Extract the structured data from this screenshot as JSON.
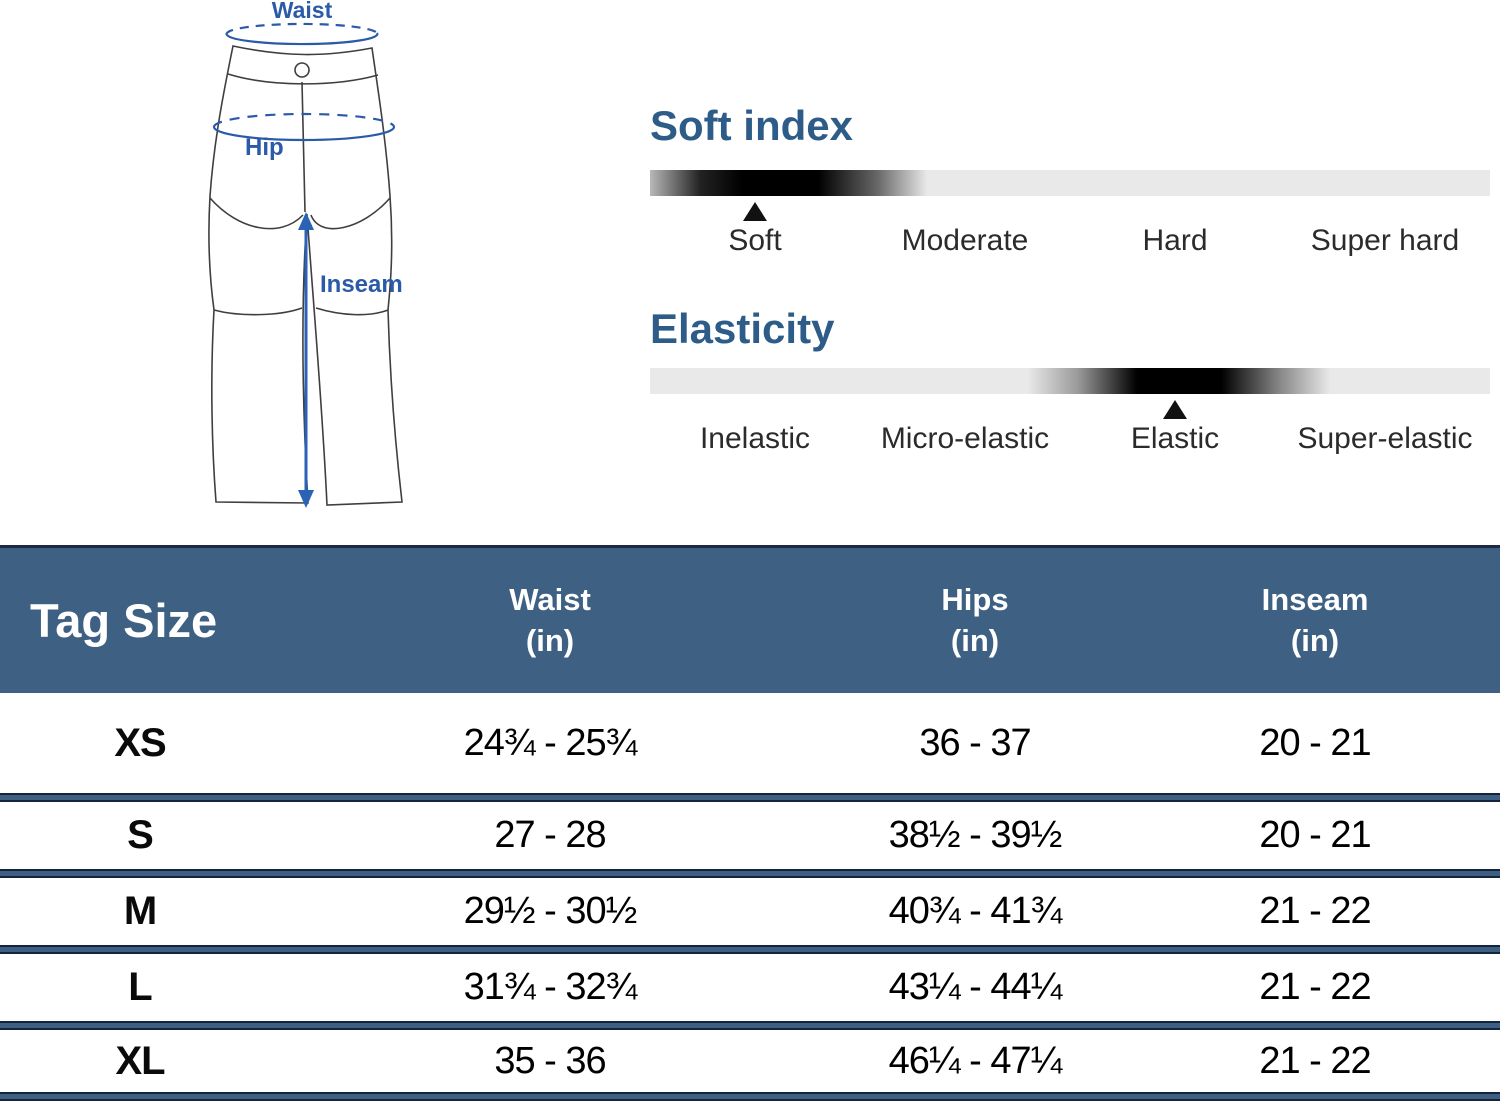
{
  "colors": {
    "accent_heading_blue": "#2E5C88",
    "diagram_label_blue": "#2A5AA8",
    "table_header_bg": "#3D6083",
    "separator_navy": "#15243C",
    "scale_track_gray": "#E9E9E9",
    "marker_black": "#111111"
  },
  "diagram": {
    "waist_label": "Waist",
    "hip_label": "Hip",
    "inseam_label": "Inseam"
  },
  "soft_index": {
    "title": "Soft index",
    "labels": [
      "Soft",
      "Moderate",
      "Hard",
      "Super hard"
    ],
    "selected": "Soft",
    "marker_pct": 12.5
  },
  "elasticity": {
    "title": "Elasticity",
    "labels": [
      "Inelastic",
      "Micro-elastic",
      "Elastic",
      "Super-elastic"
    ],
    "selected": "Elastic",
    "marker_pct": 62.5
  },
  "size_table": {
    "col_tag": "Tag Size",
    "col_waist": "Waist",
    "col_hips": "Hips",
    "col_inseam": "Inseam",
    "unit": "(in)",
    "rows": [
      {
        "size": "XS",
        "waist": "24¾ - 25¾",
        "hips": "36 - 37",
        "inseam": "20 - 21"
      },
      {
        "size": "S",
        "waist": "27 - 28",
        "hips": "38½ - 39½",
        "inseam": "20 - 21"
      },
      {
        "size": "M",
        "waist": "29½ - 30½",
        "hips": "40¾ - 41¾",
        "inseam": "21 - 22"
      },
      {
        "size": "L",
        "waist": "31¾ - 32¾",
        "hips": "43¼ - 44¼",
        "inseam": "21 - 22"
      },
      {
        "size": "XL",
        "waist": "35 - 36",
        "hips": "46¼ - 47¼",
        "inseam": "21 - 22"
      }
    ]
  }
}
